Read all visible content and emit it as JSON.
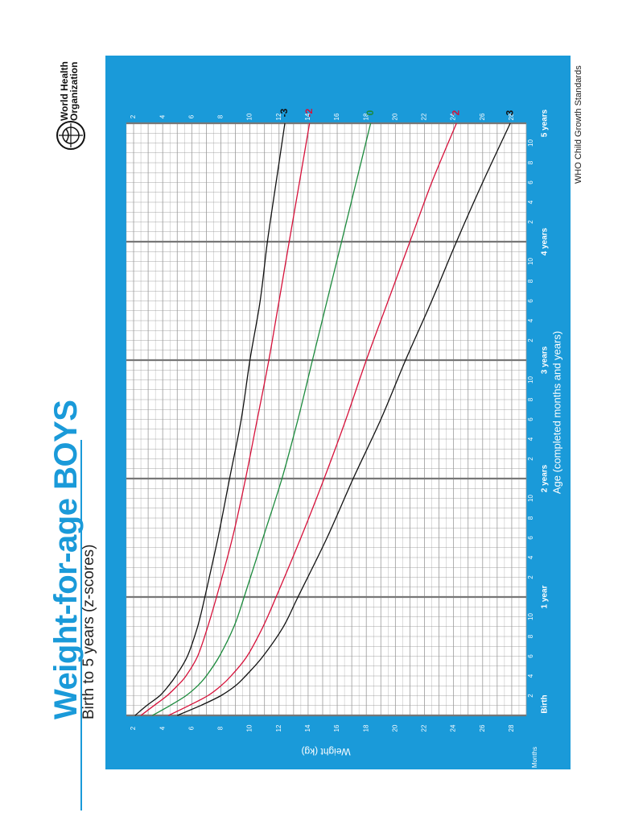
{
  "header": {
    "title": "Weight-for-age BOYS",
    "subtitle": "Birth to 5 years (z-scores)",
    "organization": "World Health Organization",
    "standards_label": "WHO Child Growth Standards"
  },
  "colors": {
    "frame": "#1a9ad9",
    "grid": "#9a9a9a",
    "major_grid": "#777777",
    "z_extreme": "#111111",
    "z_2": "#d6113a",
    "z_0": "#1b8a3c",
    "title": "#1a9ad9"
  },
  "chart_data": {
    "type": "line",
    "title": "Weight-for-age BOYS",
    "subtitle": "Birth to 5 years (z-scores)",
    "xlabel": "Age (completed months and years)",
    "ylabel": "Weight (kg)",
    "x_unit_label": "Months",
    "xlim": [
      0,
      60
    ],
    "ylim": [
      1.5,
      29
    ],
    "grid": true,
    "year_labels": [
      {
        "month": 0,
        "label": "Birth"
      },
      {
        "month": 12,
        "label": "1 year"
      },
      {
        "month": 24,
        "label": "2 years"
      },
      {
        "month": 36,
        "label": "3 years"
      },
      {
        "month": 48,
        "label": "4 years"
      },
      {
        "month": 60,
        "label": "5 years"
      }
    ],
    "month_ticks": [
      {
        "month": 2,
        "label": "2"
      },
      {
        "month": 4,
        "label": "4"
      },
      {
        "month": 6,
        "label": "6"
      },
      {
        "month": 8,
        "label": "8"
      },
      {
        "month": 10,
        "label": "10"
      },
      {
        "month": 14,
        "label": "2"
      },
      {
        "month": 16,
        "label": "4"
      },
      {
        "month": 18,
        "label": "6"
      },
      {
        "month": 20,
        "label": "8"
      },
      {
        "month": 22,
        "label": "10"
      },
      {
        "month": 26,
        "label": "2"
      },
      {
        "month": 28,
        "label": "4"
      },
      {
        "month": 30,
        "label": "6"
      },
      {
        "month": 32,
        "label": "8"
      },
      {
        "month": 34,
        "label": "10"
      },
      {
        "month": 38,
        "label": "2"
      },
      {
        "month": 40,
        "label": "4"
      },
      {
        "month": 42,
        "label": "6"
      },
      {
        "month": 44,
        "label": "8"
      },
      {
        "month": 46,
        "label": "10"
      },
      {
        "month": 50,
        "label": "2"
      },
      {
        "month": 52,
        "label": "4"
      },
      {
        "month": 54,
        "label": "6"
      },
      {
        "month": 56,
        "label": "8"
      },
      {
        "month": 58,
        "label": "10"
      }
    ],
    "y_ticks": [
      "2",
      "4",
      "6",
      "8",
      "10",
      "12",
      "14",
      "16",
      "18",
      "20",
      "22",
      "24",
      "26",
      "28"
    ],
    "x": [
      0,
      1,
      2,
      3,
      4,
      6,
      9,
      12,
      18,
      24,
      30,
      36,
      42,
      48,
      54,
      60
    ],
    "series": [
      {
        "name": "3",
        "color": "#111111",
        "values": [
          5.0,
          6.6,
          8.0,
          9.0,
          9.7,
          10.9,
          12.3,
          13.3,
          15.3,
          17.1,
          19.0,
          20.7,
          22.5,
          24.2,
          26.0,
          27.9
        ]
      },
      {
        "name": "2",
        "color": "#d6113a",
        "values": [
          4.4,
          5.8,
          7.1,
          8.0,
          8.7,
          9.8,
          10.9,
          11.8,
          13.5,
          15.1,
          16.6,
          18.0,
          19.5,
          21.0,
          22.5,
          24.2
        ]
      },
      {
        "name": "0",
        "color": "#1b8a3c",
        "values": [
          3.3,
          4.5,
          5.6,
          6.4,
          7.0,
          7.9,
          8.9,
          9.6,
          10.9,
          12.2,
          13.3,
          14.3,
          15.3,
          16.3,
          17.3,
          18.3
        ]
      },
      {
        "name": "-2",
        "color": "#d6113a",
        "values": [
          2.5,
          3.4,
          4.3,
          5.0,
          5.6,
          6.4,
          7.1,
          7.7,
          8.8,
          9.7,
          10.5,
          11.3,
          12.0,
          12.7,
          13.4,
          14.1
        ]
      },
      {
        "name": "-3",
        "color": "#111111",
        "values": [
          2.1,
          2.9,
          3.8,
          4.4,
          4.9,
          5.7,
          6.4,
          6.9,
          7.8,
          8.6,
          9.4,
          10.0,
          10.7,
          11.2,
          11.8,
          12.4
        ]
      }
    ]
  }
}
